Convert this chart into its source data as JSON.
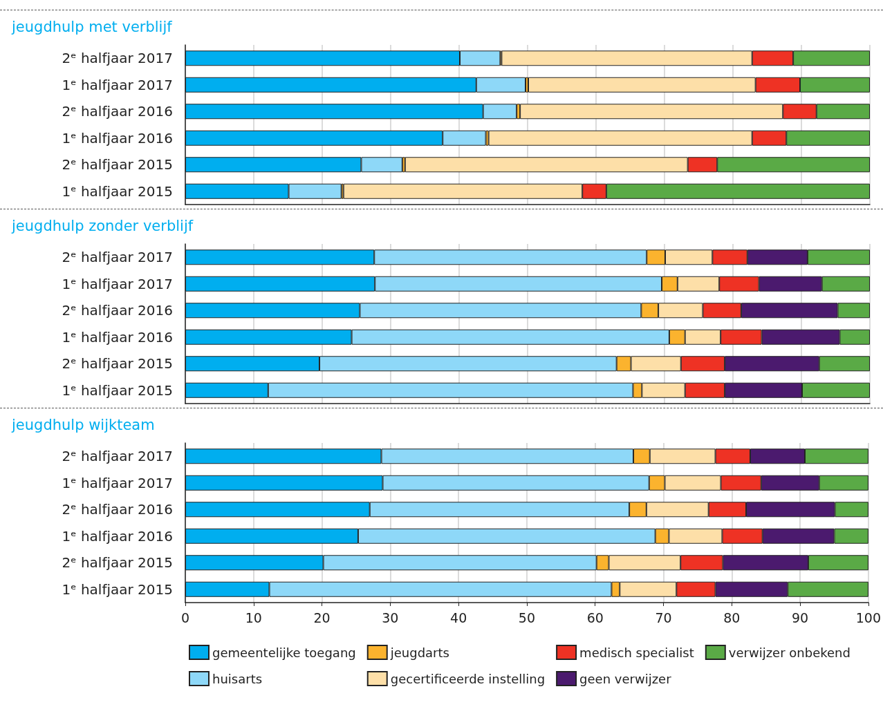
{
  "chart_data": [
    {
      "type": "bar",
      "orientation": "horizontal",
      "stacked": true,
      "title": "jeugdhulp met verblijf",
      "grid": "x",
      "tick_labels": "y",
      "categories": [
        "2ᵉ halfjaar 2017",
        "1ᵉ halfjaar 2017",
        "2ᵉ halfjaar 2016",
        "1ᵉ halfjaar 2016",
        "2ᵉ halfjaar 2015",
        "1ᵉ halfjaar 2015"
      ],
      "xlim": [
        0,
        100
      ],
      "xticks": [
        0,
        10,
        20,
        30,
        40,
        50,
        60,
        70,
        80,
        90,
        100
      ],
      "series": [
        {
          "color": "#00aeef",
          "values": [
            40.1,
            42.5,
            43.5,
            37.6,
            25.7,
            15.1
          ]
        },
        {
          "color": "#8ed8f8",
          "values": [
            5.9,
            7.2,
            4.9,
            6.3,
            6.0,
            7.7
          ]
        },
        {
          "color": "#fbb32e",
          "values": [
            0.2,
            0.4,
            0.5,
            0.4,
            0.4,
            0.3
          ]
        },
        {
          "color": "#fddfa8",
          "values": [
            36.6,
            33.2,
            38.4,
            38.5,
            41.3,
            34.9
          ]
        },
        {
          "color": "#ee3224",
          "values": [
            6.0,
            6.5,
            4.9,
            5.0,
            4.3,
            3.5
          ]
        },
        {
          "color": "#4b1a6e",
          "values": [
            null,
            null,
            null,
            null,
            null,
            null
          ]
        },
        {
          "color": "#5aaa46",
          "values": [
            11.2,
            10.2,
            7.8,
            12.2,
            22.3,
            38.5
          ]
        }
      ]
    },
    {
      "type": "bar",
      "orientation": "horizontal",
      "stacked": true,
      "title": "jeugdhulp zonder verblijf",
      "grid": "x",
      "tick_labels": "y",
      "categories": [
        "2ᵉ halfjaar 2017",
        "1ᵉ halfjaar 2017",
        "2ᵉ halfjaar 2016",
        "1ᵉ halfjaar 2016",
        "2ᵉ halfjaar 2015",
        "1ᵉ halfjaar 2015"
      ],
      "xlim": [
        0,
        100
      ],
      "xticks": [
        0,
        10,
        20,
        30,
        40,
        50,
        60,
        70,
        80,
        90,
        100
      ],
      "series": [
        {
          "color": "#00aeef",
          "values": [
            27.6,
            27.7,
            25.5,
            24.3,
            19.6,
            12.1
          ]
        },
        {
          "color": "#8ed8f8",
          "values": [
            39.8,
            41.9,
            41.1,
            46.4,
            43.4,
            53.3
          ]
        },
        {
          "color": "#fbb32e",
          "values": [
            2.7,
            2.3,
            2.5,
            2.3,
            2.1,
            1.3
          ]
        },
        {
          "color": "#fddfa8",
          "values": [
            6.9,
            6.1,
            6.5,
            5.2,
            7.3,
            6.3
          ]
        },
        {
          "color": "#ee3224",
          "values": [
            5.1,
            5.8,
            5.6,
            6.0,
            6.4,
            5.8
          ]
        },
        {
          "color": "#4b1a6e",
          "values": [
            8.8,
            9.2,
            14.1,
            11.4,
            13.8,
            11.3
          ]
        },
        {
          "color": "#5aaa46",
          "values": [
            9.1,
            7.0,
            4.7,
            4.4,
            7.4,
            9.9
          ]
        }
      ]
    },
    {
      "type": "bar",
      "orientation": "horizontal",
      "stacked": true,
      "title": "jeugdhulp wijkteam",
      "grid": "x",
      "legend": "bottom",
      "categories": [
        "2ᵉ halfjaar 2017",
        "1ᵉ halfjaar 2017",
        "2ᵉ halfjaar 2016",
        "1ᵉ halfjaar 2016",
        "2ᵉ halfjaar 2015",
        "1ᵉ halfjaar 2015"
      ],
      "xlim": [
        0,
        100
      ],
      "xticks": [
        0,
        10,
        20,
        30,
        40,
        50,
        60,
        70,
        80,
        90,
        100
      ],
      "series": [
        {
          "name": "gemeentelijke toegang",
          "color": "#00aeef",
          "values": [
            28.7,
            28.9,
            27.0,
            25.3,
            20.2,
            12.3
          ]
        },
        {
          "name": "huisarts",
          "color": "#8ed8f8",
          "values": [
            36.9,
            39.0,
            38.0,
            43.5,
            40.0,
            50.1
          ]
        },
        {
          "name": "jeugdarts",
          "color": "#fbb32e",
          "values": [
            2.4,
            2.3,
            2.5,
            2.0,
            1.8,
            1.2
          ]
        },
        {
          "name": "gecertificeerde instelling",
          "color": "#fddfa8",
          "values": [
            9.6,
            8.2,
            9.1,
            7.8,
            10.5,
            8.3
          ]
        },
        {
          "name": "medisch specialist",
          "color": "#ee3224",
          "values": [
            5.1,
            5.9,
            5.5,
            5.9,
            6.2,
            5.7
          ]
        },
        {
          "name": "geen verwijzer",
          "color": "#4b1a6e",
          "values": [
            8.0,
            8.5,
            13.0,
            10.5,
            12.5,
            10.6
          ]
        },
        {
          "name": "verwijzer onbekend",
          "color": "#5aaa46",
          "values": [
            9.3,
            7.2,
            4.9,
            5.0,
            8.8,
            11.8
          ]
        }
      ]
    }
  ]
}
